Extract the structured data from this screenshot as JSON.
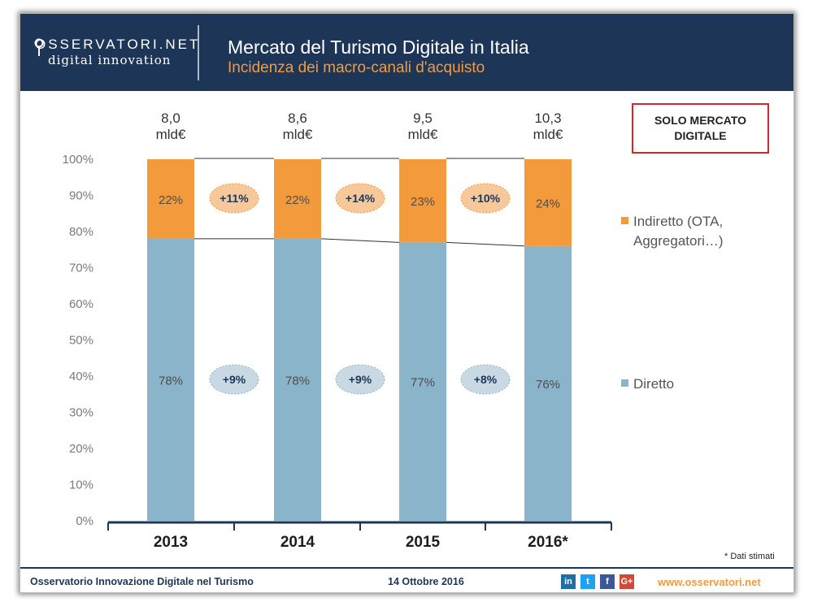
{
  "header": {
    "logo_top": "OSSERVATORI.NET",
    "logo_bottom": "digital innovation",
    "title": "Mercato del Turismo Digitale in Italia",
    "subtitle": "Incidenza dei macro-canali d'acquisto"
  },
  "sticker": {
    "line1": "SOLO MERCATO",
    "line2": "DIGITALE"
  },
  "footer": {
    "left": "Osservatorio Innovazione Digitale nel Turismo",
    "date": "14 Ottobre 2016",
    "url": "www.osservatori.net",
    "estimate_note": "* Dati stimati"
  },
  "social": [
    "in",
    "t",
    "f",
    "G+"
  ],
  "colors": {
    "navy": "#1d3658",
    "orange": "#f39a3c",
    "blue": "#8ab4c9"
  },
  "chart_data": {
    "type": "bar",
    "stacked": true,
    "categories": [
      "2013",
      "2014",
      "2015",
      "2016*"
    ],
    "totals": [
      [
        "8,0",
        "mld€"
      ],
      [
        "8,6",
        "mld€"
      ],
      [
        "9,5",
        "mld€"
      ],
      [
        "10,3",
        "mld€"
      ]
    ],
    "series": [
      {
        "name": "Diretto",
        "values": [
          78,
          78,
          77,
          76
        ],
        "labels": [
          "78%",
          "78%",
          "77%",
          "76%"
        ],
        "color": "#8ab4c9"
      },
      {
        "name": "Indiretto (OTA, Aggregatori…)",
        "legend_lines": [
          "Indiretto (OTA,",
          "Aggregatori…)"
        ],
        "values": [
          22,
          22,
          23,
          24
        ],
        "labels": [
          "22%",
          "22%",
          "23%",
          "24%"
        ],
        "color": "#f39a3c"
      }
    ],
    "growth_indiretto": [
      "+11%",
      "+14%",
      "+10%"
    ],
    "growth_diretto": [
      "+9%",
      "+9%",
      "+8%"
    ],
    "yticks": [
      "0%",
      "10%",
      "20%",
      "30%",
      "40%",
      "50%",
      "60%",
      "70%",
      "80%",
      "90%",
      "100%"
    ],
    "ylim": [
      0,
      100
    ]
  }
}
